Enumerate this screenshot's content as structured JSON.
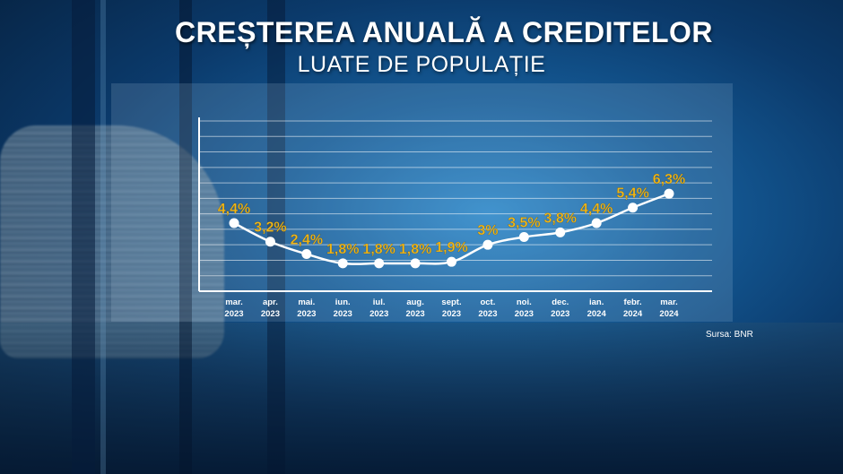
{
  "title": "CREȘTEREA ANUALĂ A CREDITELOR",
  "subtitle": "LUATE DE POPULAȚIE",
  "source": "Sursa: BNR",
  "colors": {
    "line": "#ffffff",
    "label": "#f2b818",
    "axis": "#ffffff"
  },
  "chart_data": {
    "type": "line",
    "title": "CREȘTEREA ANUALĂ A CREDITELOR",
    "subtitle": "LUATE DE POPULAȚIE",
    "categories": [
      [
        "mar.",
        "2023"
      ],
      [
        "apr.",
        "2023"
      ],
      [
        "mai.",
        "2023"
      ],
      [
        "iun.",
        "2023"
      ],
      [
        "iul.",
        "2023"
      ],
      [
        "aug.",
        "2023"
      ],
      [
        "sept.",
        "2023"
      ],
      [
        "oct.",
        "2023"
      ],
      [
        "noi.",
        "2023"
      ],
      [
        "dec.",
        "2023"
      ],
      [
        "ian.",
        "2024"
      ],
      [
        "febr.",
        "2024"
      ],
      [
        "mar.",
        "2024"
      ]
    ],
    "values": [
      4.4,
      3.2,
      2.4,
      1.8,
      1.8,
      1.8,
      1.9,
      3,
      3.5,
      3.8,
      4.4,
      5.4,
      6.3
    ],
    "labels": [
      "4,4%",
      "3,2%",
      "2,4%",
      "1,8%",
      "1,8%",
      "1,8%",
      "1,9%",
      "3%",
      "3,5%",
      "3,8%",
      "4,4%",
      "5,4%",
      "6,3%"
    ],
    "ylim": [
      0,
      11
    ],
    "grid": true
  }
}
